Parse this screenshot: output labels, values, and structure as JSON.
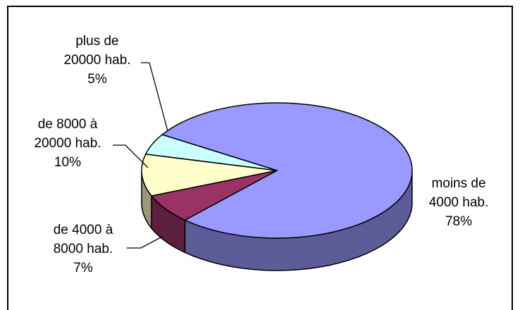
{
  "chart_data": {
    "type": "pie",
    "title": "",
    "slices": [
      {
        "label_lines": [
          "moins de",
          "4000 hab.",
          "78%"
        ],
        "value": 78,
        "color": "#9999ff",
        "side_color": "#5c5c99"
      },
      {
        "label_lines": [
          "de 4000 à",
          "8000 hab.",
          "7%"
        ],
        "value": 7,
        "color": "#993366",
        "side_color": "#5c1f3d"
      },
      {
        "label_lines": [
          "de 8000 à",
          "20000 hab.",
          "10%"
        ],
        "value": 10,
        "color": "#ffffcc",
        "side_color": "#99997a"
      },
      {
        "label_lines": [
          "plus de",
          "20000 hab.",
          "5%"
        ],
        "value": 5,
        "color": "#ccffff",
        "side_color": "#7a9999"
      }
    ],
    "legend": "none",
    "style": "3d-exploded-none"
  }
}
